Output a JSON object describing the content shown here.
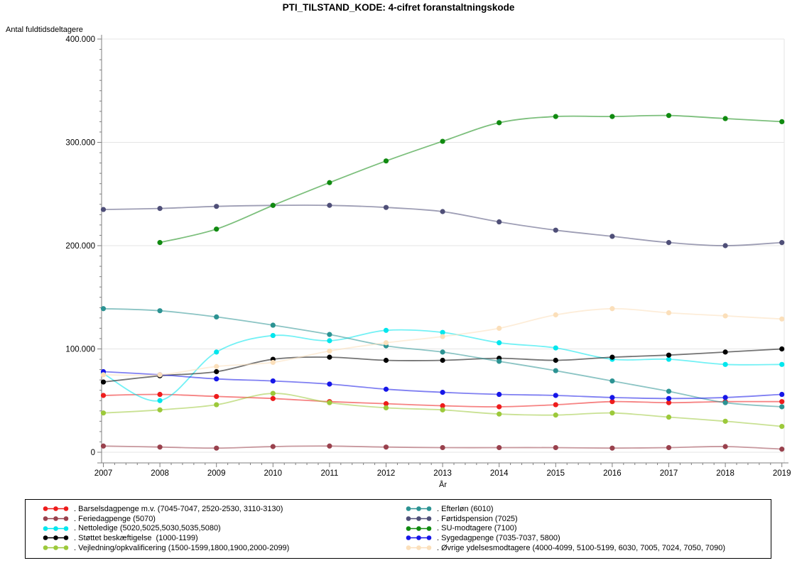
{
  "title": "PTI_TILSTAND_KODE: 4-cifret foranstaltningskode",
  "y_axis": {
    "label": "Antal fuldtidsdeltagere",
    "tick_labels": [
      "0",
      "100.000",
      "200.000",
      "300.000",
      "400.000"
    ],
    "tick_values": [
      0,
      100000,
      200000,
      300000,
      400000
    ],
    "minor_step": 10000,
    "max": 400000
  },
  "x_axis": {
    "label": "År",
    "tick_labels": [
      "2007",
      "2008",
      "2009",
      "2010",
      "2011",
      "2012",
      "2013",
      "2014",
      "2015",
      "2016",
      "2017",
      "2018",
      "2019"
    ],
    "minor_ticks_per_interval": 4
  },
  "chart_data": {
    "type": "line",
    "title": "PTI_TILSTAND_KODE: 4-cifret foranstaltningskode",
    "xlabel": "År",
    "ylabel": "Antal fuldtidsdeltagere",
    "x": [
      2007,
      2008,
      2009,
      2010,
      2011,
      2012,
      2013,
      2014,
      2015,
      2016,
      2017,
      2018,
      2019
    ],
    "ylim": [
      0,
      400000
    ],
    "grid": "horizontal-major",
    "legend_position": "bottom-box-two-columns",
    "marker": "circle",
    "series": [
      {
        "id": "barselsdagpenge",
        "name": ". Barselsdagpenge m.v. (7045-7047, 2520-2530, 3110-3130)",
        "color": "#ee1c1c",
        "values": [
          55000,
          56000,
          54000,
          52000,
          49000,
          47000,
          45000,
          44000,
          46000,
          49000,
          48000,
          49000,
          49000
        ]
      },
      {
        "id": "feriedagpenge",
        "name": ". Feriedagpenge (5070)",
        "color": "#99414d",
        "values": [
          6000,
          5000,
          4000,
          5500,
          6000,
          5000,
          4500,
          4500,
          4500,
          4000,
          4500,
          5500,
          3000
        ]
      },
      {
        "id": "nettoledige",
        "name": ". Nettoledige (5020,5025,5030,5035,5080)",
        "color": "#00e6ed",
        "values": [
          76000,
          50000,
          97000,
          113000,
          108000,
          118000,
          116000,
          106000,
          101000,
          90000,
          90000,
          85000,
          85000
        ]
      },
      {
        "id": "stoettet-beskaeftigelse",
        "name": ". Støttet beskæftigelse  (1000-1199)",
        "color": "#000000",
        "values": [
          68000,
          74000,
          78000,
          90000,
          92000,
          89000,
          89000,
          91000,
          89000,
          92000,
          94000,
          97000,
          100000
        ]
      },
      {
        "id": "vejledning-opkvalificering",
        "name": ". Vejledning/opkvalificering (1500-1599,1800,1900,2000-2099)",
        "color": "#9cc93a",
        "values": [
          38000,
          41000,
          46000,
          57000,
          48000,
          43000,
          41000,
          37000,
          36000,
          38000,
          34000,
          30000,
          25000
        ]
      },
      {
        "id": "efterloen",
        "name": ". Efterløn (6010)",
        "color": "#2c9393",
        "values": [
          139000,
          137000,
          131000,
          123000,
          114000,
          103000,
          97000,
          88000,
          79000,
          69000,
          59000,
          48000,
          44000
        ]
      },
      {
        "id": "foertidspension",
        "name": ". Førtidspension (7025)",
        "color": "#4f4f78",
        "values": [
          235000,
          236000,
          238000,
          239000,
          239000,
          237000,
          233000,
          223000,
          215000,
          209000,
          203000,
          200000,
          203000
        ]
      },
      {
        "id": "su-modtagere",
        "name": ". SU-modtagere (7100)",
        "color": "#108a10",
        "values": [
          null,
          203000,
          216000,
          239000,
          261000,
          282000,
          301000,
          319000,
          325000,
          325000,
          326000,
          323000,
          320000
        ]
      },
      {
        "id": "sygedagpenge",
        "name": ". Sygedagpenge (7035-7037, 5800)",
        "color": "#1616e8",
        "values": [
          78000,
          75000,
          71000,
          69000,
          66000,
          61000,
          58000,
          56000,
          55000,
          53000,
          52000,
          53000,
          56000
        ]
      },
      {
        "id": "oevrige-ydelsesmodtagere",
        "name": ". Øvrige ydelsesmodtagere (4000-4099, 5100-5199, 6030, 7005, 7024, 7050, 7090)",
        "color": "#fbdfba",
        "values": [
          75000,
          75000,
          83000,
          87000,
          98000,
          106000,
          112000,
          120000,
          133000,
          139000,
          135000,
          132000,
          129000
        ]
      }
    ]
  },
  "legend": {
    "columns": [
      [
        0,
        1,
        2,
        3,
        4
      ],
      [
        5,
        6,
        7,
        8,
        9
      ]
    ]
  }
}
